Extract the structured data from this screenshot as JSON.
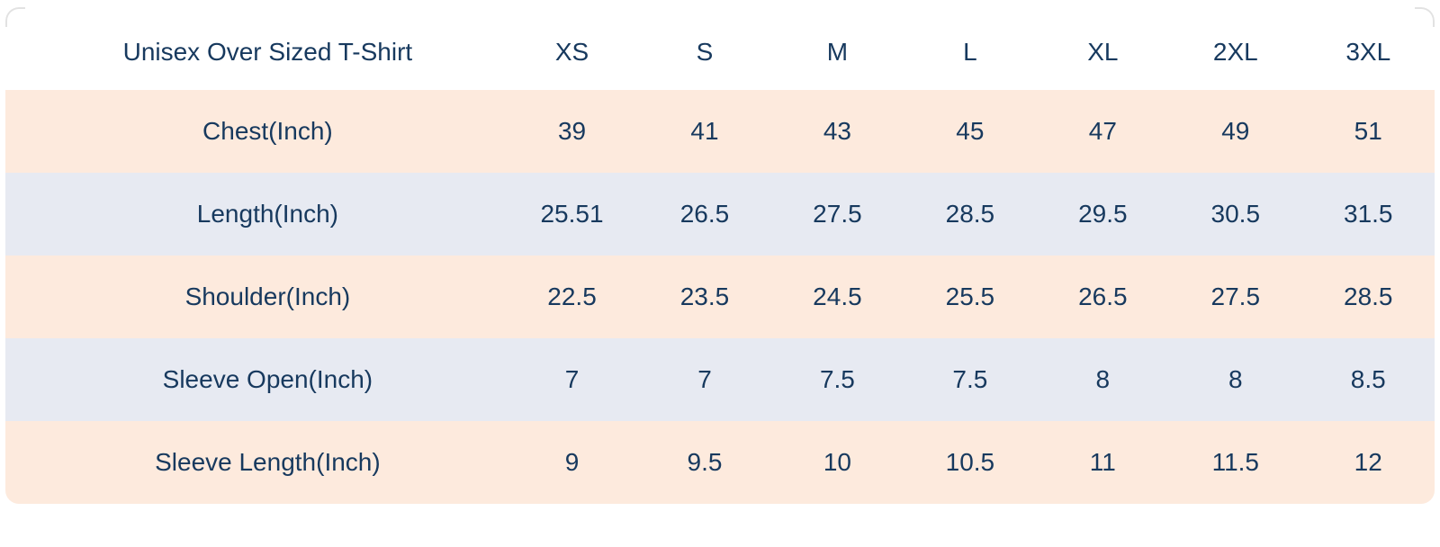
{
  "colors": {
    "row_peach": "#fdeadd",
    "row_blue": "#e7eaf2",
    "text_navy": "#17395e",
    "background": "#ffffff"
  },
  "chart_data": {
    "type": "table",
    "title": "Unisex Over Sized T-Shirt",
    "columns": [
      "XS",
      "S",
      "M",
      "L",
      "XL",
      "2XL",
      "3XL"
    ],
    "rows": [
      {
        "label": "Chest(Inch)",
        "values": [
          "39",
          "41",
          "43",
          "45",
          "47",
          "49",
          "51"
        ]
      },
      {
        "label": "Length(Inch)",
        "values": [
          "25.51",
          "26.5",
          "27.5",
          "28.5",
          "29.5",
          "30.5",
          "31.5"
        ]
      },
      {
        "label": "Shoulder(Inch)",
        "values": [
          "22.5",
          "23.5",
          "24.5",
          "25.5",
          "26.5",
          "27.5",
          "28.5"
        ]
      },
      {
        "label": "Sleeve Open(Inch)",
        "values": [
          "7",
          "7",
          "7.5",
          "7.5",
          "8",
          "8",
          "8.5"
        ]
      },
      {
        "label": "Sleeve Length(Inch)",
        "values": [
          "9",
          "9.5",
          "10",
          "10.5",
          "11",
          "11.5",
          "12"
        ]
      }
    ]
  }
}
